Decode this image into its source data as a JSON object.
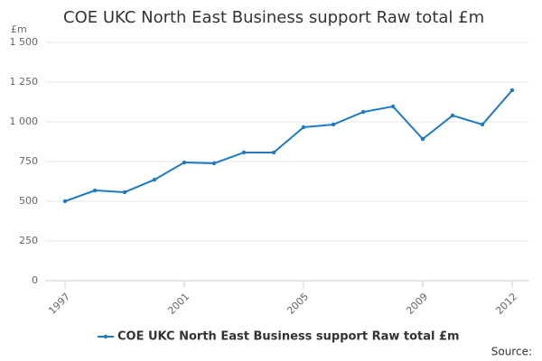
{
  "chart_data": {
    "type": "line",
    "title": "COE UKC North East Business support Raw total £m",
    "y_label": "£m",
    "source": "Source:",
    "x": [
      1997,
      1998,
      1999,
      2000,
      2001,
      2002,
      2003,
      2004,
      2005,
      2006,
      2007,
      2008,
      2009,
      2010,
      2011,
      2012
    ],
    "xlim": [
      1997,
      2012
    ],
    "xticks": [
      1997,
      2001,
      2005,
      2009,
      2012
    ],
    "series": [
      {
        "name": "COE UKC North East Business support Raw total £m",
        "color": "#1f7bbf",
        "values": [
          500,
          568,
          557,
          636,
          744,
          739,
          807,
          807,
          966,
          983,
          1062,
          1097,
          892,
          1040,
          983,
          1199
        ]
      }
    ],
    "ylim": [
      0,
      1500
    ],
    "yticks": [
      0,
      250,
      500,
      750,
      {
        "value": 1000,
        "label": "1 000"
      },
      {
        "value": 1250,
        "label": "1 250"
      },
      {
        "value": 1500,
        "label": "1 500"
      }
    ],
    "grid": true,
    "legend": "bottom"
  }
}
